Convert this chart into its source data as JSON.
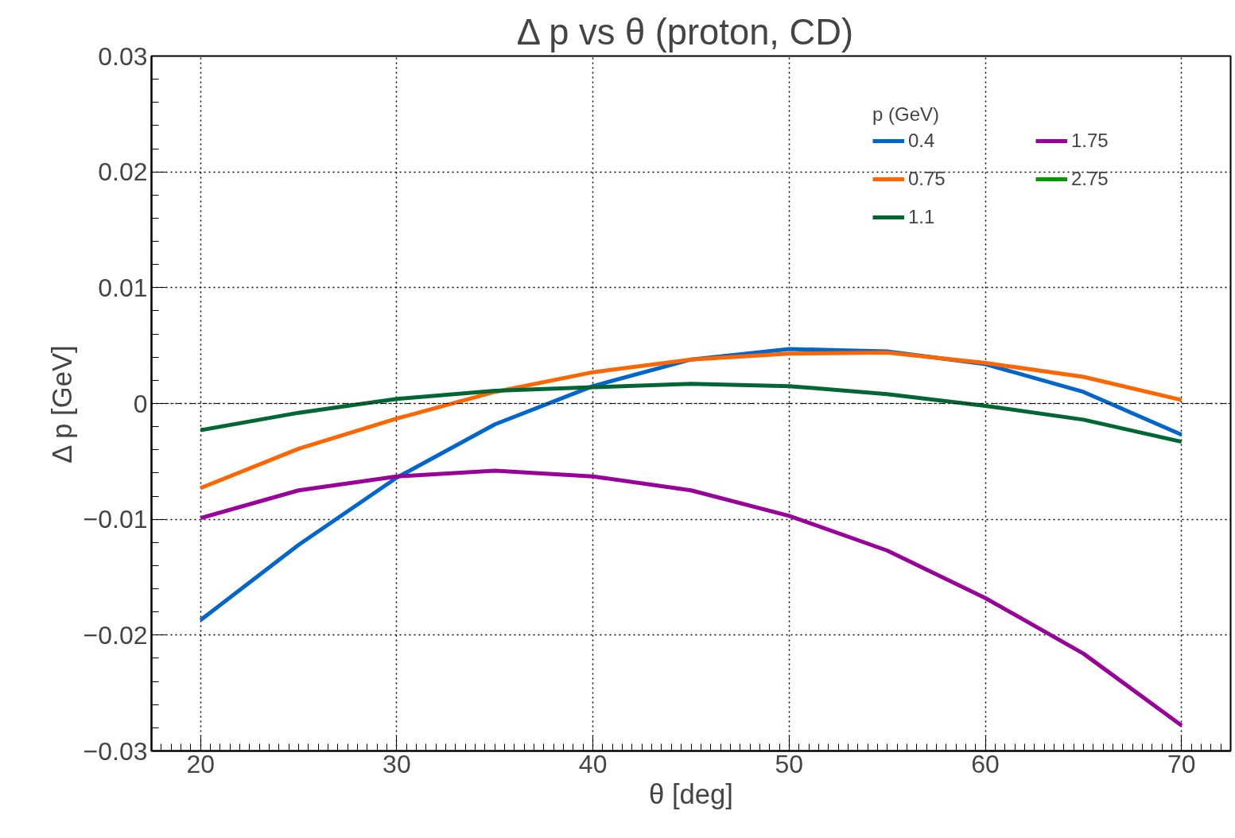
{
  "chart_data": {
    "type": "line",
    "title": "Δ p vs θ  (proton, CD)",
    "xlabel": "θ [deg]",
    "ylabel": "Δ p [GeV]",
    "legend_title": "p (GeV)",
    "x": [
      20,
      25,
      30,
      35,
      40,
      45,
      50,
      55,
      60,
      65,
      70
    ],
    "series": [
      {
        "name": "0.4",
        "color": "#0066cc",
        "values": [
          -0.0187,
          -0.0122,
          -0.0064,
          -0.0018,
          0.0015,
          0.0038,
          0.0047,
          0.0045,
          0.0034,
          0.001,
          -0.0027
        ]
      },
      {
        "name": "0.75",
        "color": "#ff6600",
        "values": [
          -0.0073,
          -0.0039,
          -0.0013,
          0.001,
          0.0027,
          0.0038,
          0.0043,
          0.0044,
          0.0035,
          0.0023,
          0.0003
        ]
      },
      {
        "name": "1.1",
        "color": "#006633",
        "values": [
          -0.0023,
          -0.0008,
          0.0004,
          0.0011,
          0.0014,
          0.0017,
          0.0015,
          0.0008,
          -0.0002,
          -0.0014,
          -0.0033
        ]
      },
      {
        "name": "1.75",
        "color": "#990099",
        "values": [
          -0.0099,
          -0.0075,
          -0.0063,
          -0.0058,
          -0.0063,
          -0.0075,
          -0.0097,
          -0.0127,
          -0.0168,
          -0.0216,
          -0.0278
        ]
      },
      {
        "name": "2.75",
        "color": "#009900",
        "values": [
          null,
          null,
          null,
          null,
          null,
          null,
          null,
          null,
          null,
          null,
          null
        ]
      }
    ],
    "xlim": [
      17.5,
      72.5
    ],
    "ylim": [
      -0.03,
      0.03
    ],
    "xticks": [
      20,
      30,
      40,
      50,
      60,
      70
    ],
    "yticks": [
      {
        "value": -0.03,
        "label": "−0.03"
      },
      {
        "value": -0.02,
        "label": "−0.02"
      },
      {
        "value": -0.01,
        "label": "−0.01"
      },
      0,
      0.01,
      0.02,
      0.03
    ],
    "ref_lines": [
      {
        "axis": "y",
        "value": 0,
        "label": null,
        "color": "#000000",
        "line_style": "dashdot"
      }
    ],
    "grid": true,
    "legend": "top right",
    "marker": "none",
    "line_style": "solid"
  }
}
